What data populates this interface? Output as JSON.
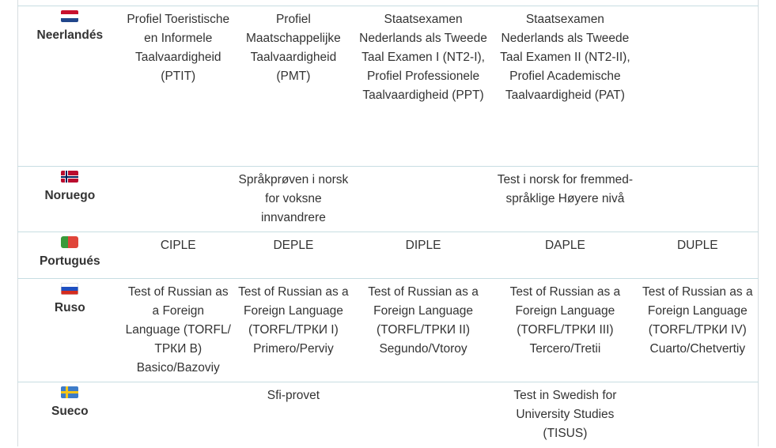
{
  "rows": [
    {
      "flag_icon": "netherlands-flag-icon",
      "language": "Neerlandés",
      "cells": [
        "Profiel Toeristische en Informele Taalvaardigheid (PTIT)",
        "Profiel Maatschappelijke Taalvaardigheid (PMT)",
        "Staatsexamen Nederlands als Tweede Taal Examen I (NT2-I), Profiel Professionele Taalvaardigheid (PPT)",
        "Staatsexamen Nederlands als Tweede Taal Examen II (NT2-II), Profiel Academische Taalvaardigheid (PAT)",
        ""
      ]
    },
    {
      "flag_icon": "norway-flag-icon",
      "language": "Noruego",
      "cells": [
        "",
        "Språkprøven i norsk for voksne innvandrere",
        "",
        "Test i norsk for fremmed-språklige Høyere nivå",
        ""
      ]
    },
    {
      "flag_icon": "portugal-flag-icon",
      "language": "Portugués",
      "cells": [
        "CIPLE",
        "DEPLE",
        "DIPLE",
        "DAPLE",
        "DUPLE"
      ]
    },
    {
      "flag_icon": "russia-flag-icon",
      "language": "Ruso",
      "cells": [
        "Test of Russian as a Foreign Language (TORFL/ТРКИ В) Basico/Bazoviy",
        "Test of Russian as a Foreign Language (TORFL/ТРКИ I) Primero/Perviy",
        "Test of Russian as a Foreign Language (TORFL/ТРКИ II) Segundo/Vtoroy",
        "Test of Russian as a Foreign Language (TORFL/ТРКИ III) Tercero/Tretii",
        "Test of Russian as a Foreign Language (TORFL/ТРКИ IV) Cuarto/Chetvertiy"
      ]
    },
    {
      "flag_icon": "sweden-flag-icon",
      "language": "Sueco",
      "cells": [
        "",
        "Sfi-provet",
        "",
        "Test in Swedish for University Studies (TISUS)",
        ""
      ]
    }
  ]
}
